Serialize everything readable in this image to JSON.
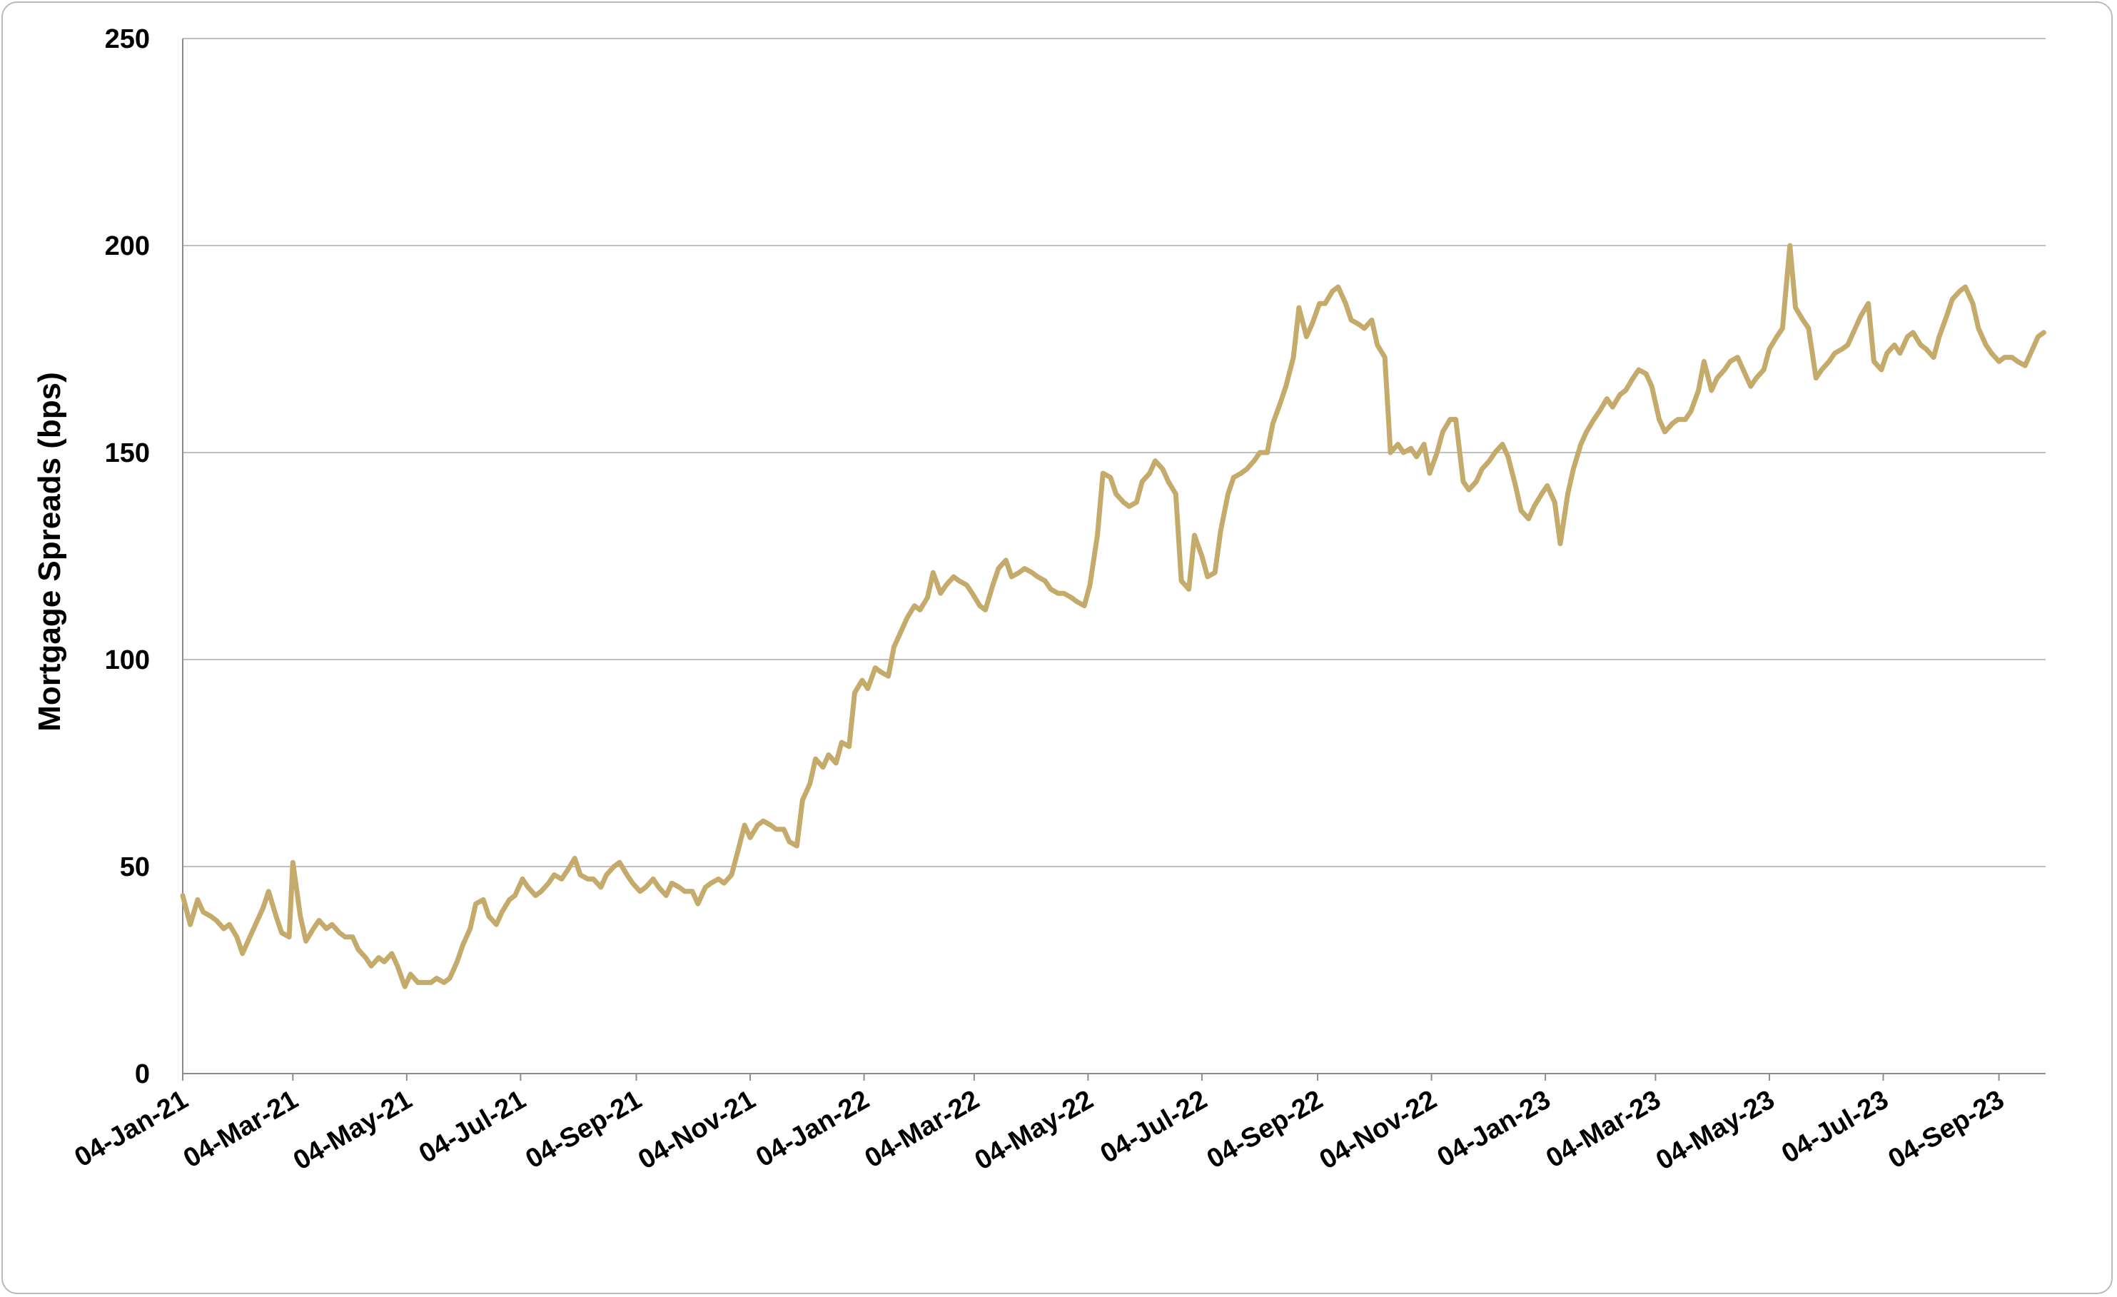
{
  "chart_data": {
    "type": "line",
    "title": "",
    "xlabel": "",
    "ylabel": "Mortgage Spreads (bps)",
    "ylim": [
      0,
      250
    ],
    "yticks": [
      0,
      50,
      100,
      150,
      200,
      250
    ],
    "xlim": [
      "2021-01-04",
      "2023-09-29"
    ],
    "xticks": [
      {
        "date": "2021-01-04",
        "label": "04-Jan-21"
      },
      {
        "date": "2021-03-04",
        "label": "04-Mar-21"
      },
      {
        "date": "2021-05-04",
        "label": "04-May-21"
      },
      {
        "date": "2021-07-04",
        "label": "04-Jul-21"
      },
      {
        "date": "2021-09-04",
        "label": "04-Sep-21"
      },
      {
        "date": "2021-11-04",
        "label": "04-Nov-21"
      },
      {
        "date": "2022-01-04",
        "label": "04-Jan-22"
      },
      {
        "date": "2022-03-04",
        "label": "04-Mar-22"
      },
      {
        "date": "2022-05-04",
        "label": "04-May-22"
      },
      {
        "date": "2022-07-04",
        "label": "04-Jul-22"
      },
      {
        "date": "2022-09-04",
        "label": "04-Sep-22"
      },
      {
        "date": "2022-11-04",
        "label": "04-Nov-22"
      },
      {
        "date": "2023-01-04",
        "label": "04-Jan-23"
      },
      {
        "date": "2023-03-04",
        "label": "04-Mar-23"
      },
      {
        "date": "2023-05-04",
        "label": "04-May-23"
      },
      {
        "date": "2023-07-04",
        "label": "04-Jul-23"
      },
      {
        "date": "2023-09-04",
        "label": "04-Sep-23"
      }
    ],
    "grid": {
      "horizontal": true,
      "vertical": false
    },
    "legend": "none",
    "colors": {
      "line": "#c4ab6b",
      "grid": "#bfbfbf",
      "axis": "#8c8c8c",
      "border": "#b9b9b9"
    },
    "series": [
      {
        "x": [
          "2021-01-04",
          "2021-01-08",
          "2021-01-12",
          "2021-01-15",
          "2021-01-19",
          "2021-01-22",
          "2021-01-26",
          "2021-01-29",
          "2021-02-02",
          "2021-02-05",
          "2021-02-09",
          "2021-02-12",
          "2021-02-16",
          "2021-02-19",
          "2021-02-23",
          "2021-02-26",
          "2021-03-02",
          "2021-03-04",
          "2021-03-08",
          "2021-03-11",
          "2021-03-15",
          "2021-03-18",
          "2021-03-22",
          "2021-03-25",
          "2021-03-29",
          "2021-04-01",
          "2021-04-05",
          "2021-04-08",
          "2021-04-12",
          "2021-04-15",
          "2021-04-19",
          "2021-04-22",
          "2021-04-26",
          "2021-04-29",
          "2021-05-03",
          "2021-05-06",
          "2021-05-10",
          "2021-05-13",
          "2021-05-17",
          "2021-05-20",
          "2021-05-24",
          "2021-05-27",
          "2021-05-31",
          "2021-06-03",
          "2021-06-07",
          "2021-06-10",
          "2021-06-14",
          "2021-06-17",
          "2021-06-21",
          "2021-06-24",
          "2021-06-28",
          "2021-07-01",
          "2021-07-05",
          "2021-07-08",
          "2021-07-12",
          "2021-07-15",
          "2021-07-19",
          "2021-07-22",
          "2021-07-26",
          "2021-07-29",
          "2021-08-02",
          "2021-08-05",
          "2021-08-09",
          "2021-08-12",
          "2021-08-16",
          "2021-08-19",
          "2021-08-23",
          "2021-08-26",
          "2021-08-30",
          "2021-09-02",
          "2021-09-06",
          "2021-09-09",
          "2021-09-13",
          "2021-09-16",
          "2021-09-20",
          "2021-09-23",
          "2021-09-27",
          "2021-09-30",
          "2021-10-04",
          "2021-10-07",
          "2021-10-11",
          "2021-10-14",
          "2021-10-18",
          "2021-10-21",
          "2021-10-25",
          "2021-10-28",
          "2021-11-01",
          "2021-11-04",
          "2021-11-08",
          "2021-11-11",
          "2021-11-15",
          "2021-11-18",
          "2021-11-22",
          "2021-11-25",
          "2021-11-29",
          "2021-12-02",
          "2021-12-06",
          "2021-12-09",
          "2021-12-13",
          "2021-12-16",
          "2021-12-20",
          "2021-12-23",
          "2021-12-27",
          "2021-12-30",
          "2022-01-03",
          "2022-01-06",
          "2022-01-10",
          "2022-01-13",
          "2022-01-17",
          "2022-01-20",
          "2022-01-24",
          "2022-01-27",
          "2022-01-31",
          "2022-02-03",
          "2022-02-07",
          "2022-02-10",
          "2022-02-14",
          "2022-02-17",
          "2022-02-21",
          "2022-02-24",
          "2022-02-28",
          "2022-03-03",
          "2022-03-07",
          "2022-03-10",
          "2022-03-14",
          "2022-03-17",
          "2022-03-21",
          "2022-03-24",
          "2022-03-28",
          "2022-03-31",
          "2022-04-04",
          "2022-04-07",
          "2022-04-11",
          "2022-04-14",
          "2022-04-18",
          "2022-04-21",
          "2022-04-25",
          "2022-04-28",
          "2022-05-02",
          "2022-05-05",
          "2022-05-09",
          "2022-05-12",
          "2022-05-16",
          "2022-05-19",
          "2022-05-23",
          "2022-05-26",
          "2022-05-30",
          "2022-06-02",
          "2022-06-06",
          "2022-06-09",
          "2022-06-13",
          "2022-06-16",
          "2022-06-20",
          "2022-06-23",
          "2022-06-27",
          "2022-06-30",
          "2022-07-04",
          "2022-07-07",
          "2022-07-11",
          "2022-07-14",
          "2022-07-18",
          "2022-07-21",
          "2022-07-25",
          "2022-07-28",
          "2022-08-01",
          "2022-08-04",
          "2022-08-08",
          "2022-08-11",
          "2022-08-15",
          "2022-08-18",
          "2022-08-22",
          "2022-08-25",
          "2022-08-29",
          "2022-09-01",
          "2022-09-05",
          "2022-09-08",
          "2022-09-12",
          "2022-09-15",
          "2022-09-19",
          "2022-09-22",
          "2022-09-26",
          "2022-09-29",
          "2022-10-03",
          "2022-10-06",
          "2022-10-10",
          "2022-10-13",
          "2022-10-17",
          "2022-10-20",
          "2022-10-24",
          "2022-10-27",
          "2022-10-31",
          "2022-11-03",
          "2022-11-07",
          "2022-11-10",
          "2022-11-14",
          "2022-11-17",
          "2022-11-21",
          "2022-11-24",
          "2022-11-28",
          "2022-12-01",
          "2022-12-05",
          "2022-12-08",
          "2022-12-12",
          "2022-12-15",
          "2022-12-19",
          "2022-12-22",
          "2022-12-26",
          "2022-12-29",
          "2023-01-02",
          "2023-01-05",
          "2023-01-09",
          "2023-01-12",
          "2023-01-16",
          "2023-01-19",
          "2023-01-23",
          "2023-01-26",
          "2023-01-30",
          "2023-02-02",
          "2023-02-06",
          "2023-02-09",
          "2023-02-13",
          "2023-02-16",
          "2023-02-20",
          "2023-02-23",
          "2023-02-27",
          "2023-03-02",
          "2023-03-06",
          "2023-03-09",
          "2023-03-13",
          "2023-03-16",
          "2023-03-20",
          "2023-03-23",
          "2023-03-27",
          "2023-03-30",
          "2023-04-03",
          "2023-04-06",
          "2023-04-10",
          "2023-04-13",
          "2023-04-17",
          "2023-04-20",
          "2023-04-24",
          "2023-04-27",
          "2023-05-01",
          "2023-05-04",
          "2023-05-08",
          "2023-05-11",
          "2023-05-15",
          "2023-05-18",
          "2023-05-22",
          "2023-05-25",
          "2023-05-29",
          "2023-06-01",
          "2023-06-05",
          "2023-06-08",
          "2023-06-12",
          "2023-06-15",
          "2023-06-19",
          "2023-06-22",
          "2023-06-26",
          "2023-06-29",
          "2023-07-03",
          "2023-07-06",
          "2023-07-10",
          "2023-07-13",
          "2023-07-17",
          "2023-07-20",
          "2023-07-24",
          "2023-07-27",
          "2023-07-31",
          "2023-08-03",
          "2023-08-07",
          "2023-08-10",
          "2023-08-14",
          "2023-08-17",
          "2023-08-21",
          "2023-08-24",
          "2023-08-28",
          "2023-08-31",
          "2023-09-04",
          "2023-09-07",
          "2023-09-11",
          "2023-09-14",
          "2023-09-18",
          "2023-09-21",
          "2023-09-25",
          "2023-09-28"
        ],
        "y": [
          43,
          36,
          42,
          39,
          38,
          37,
          35,
          36,
          33,
          29,
          33,
          36,
          40,
          44,
          38,
          34,
          33,
          51,
          38,
          32,
          35,
          37,
          35,
          36,
          34,
          33,
          33,
          30,
          28,
          26,
          28,
          27,
          29,
          26,
          21,
          24,
          22,
          22,
          22,
          23,
          22,
          23,
          27,
          31,
          35,
          41,
          42,
          38,
          36,
          39,
          42,
          43,
          47,
          45,
          43,
          44,
          46,
          48,
          47,
          49,
          52,
          48,
          47,
          47,
          45,
          48,
          50,
          51,
          48,
          46,
          44,
          45,
          47,
          45,
          43,
          46,
          45,
          44,
          44,
          41,
          45,
          46,
          47,
          46,
          48,
          53,
          60,
          57,
          60,
          61,
          60,
          59,
          59,
          56,
          55,
          66,
          70,
          76,
          74,
          77,
          75,
          80,
          79,
          92,
          95,
          93,
          98,
          97,
          96,
          103,
          107,
          110,
          113,
          112,
          115,
          121,
          116,
          118,
          120,
          119,
          118,
          116,
          113,
          112,
          118,
          122,
          124,
          120,
          121,
          122,
          121,
          120,
          119,
          117,
          116,
          116,
          115,
          114,
          113,
          118,
          130,
          145,
          144,
          140,
          138,
          137,
          138,
          143,
          145,
          148,
          146,
          143,
          140,
          119,
          117,
          130,
          125,
          120,
          121,
          131,
          140,
          144,
          145,
          146,
          148,
          150,
          150,
          157,
          162,
          166,
          173,
          185,
          178,
          181,
          186,
          186,
          189,
          190,
          186,
          182,
          181,
          180,
          182,
          176,
          173,
          150,
          152,
          150,
          151,
          149,
          152,
          145,
          150,
          155,
          158,
          158,
          143,
          141,
          143,
          146,
          148,
          150,
          152,
          149,
          142,
          136,
          134,
          137,
          140,
          142,
          138,
          128,
          140,
          146,
          152,
          155,
          158,
          160,
          163,
          161,
          164,
          165,
          168,
          170,
          169,
          166,
          158,
          155,
          157,
          158,
          158,
          160,
          165,
          172,
          165,
          168,
          170,
          172,
          173,
          170,
          166,
          168,
          170,
          175,
          178,
          180,
          200,
          185,
          182,
          180,
          168,
          170,
          172,
          174,
          175,
          176,
          180,
          183,
          186,
          172,
          170,
          174,
          176,
          174,
          178,
          179,
          176,
          175,
          173,
          178,
          183,
          187,
          189,
          190,
          186,
          180,
          176,
          174,
          172,
          173,
          173,
          172,
          171,
          174,
          178,
          179
        ]
      }
    ]
  }
}
